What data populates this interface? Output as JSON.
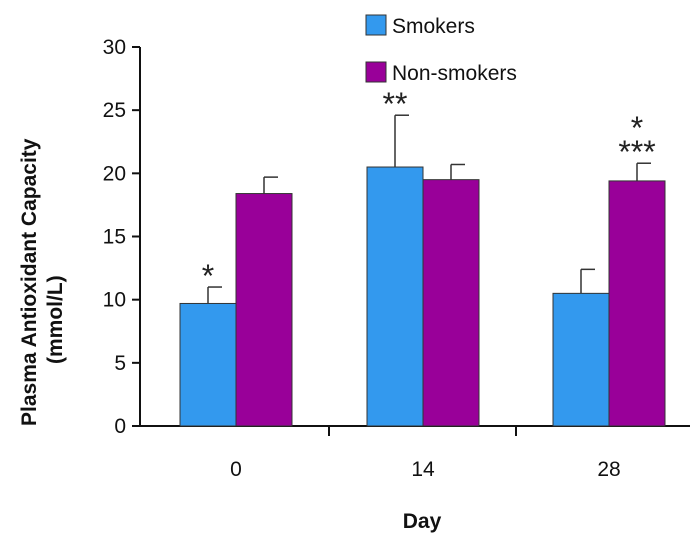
{
  "chart_data": {
    "type": "bar",
    "title": "",
    "xlabel": "Day",
    "ylabel_line1": "Plasma Antioxidant Capacity",
    "ylabel_line2": "(mmol/L)",
    "categories": [
      "0",
      "14",
      "28"
    ],
    "ylim": [
      0,
      30
    ],
    "yticks": [
      0,
      5,
      10,
      15,
      20,
      25,
      30
    ],
    "grid": false,
    "legend_position": "top-center",
    "series": [
      {
        "name": "Smokers",
        "color": "#3399ee",
        "values": [
          9.7,
          20.5,
          10.5
        ],
        "errors": [
          1.3,
          4.1,
          1.9
        ]
      },
      {
        "name": "Non-smokers",
        "color": "#990099",
        "values": [
          18.4,
          19.5,
          19.4
        ],
        "errors": [
          1.3,
          1.2,
          1.4
        ]
      }
    ],
    "annotations": [
      {
        "category": "0",
        "series": "Smokers",
        "lines": [
          "*"
        ]
      },
      {
        "category": "14",
        "series": "Smokers",
        "lines": [
          "**"
        ]
      },
      {
        "category": "28",
        "series": "Non-smokers",
        "lines": [
          "*",
          "***"
        ]
      }
    ]
  }
}
